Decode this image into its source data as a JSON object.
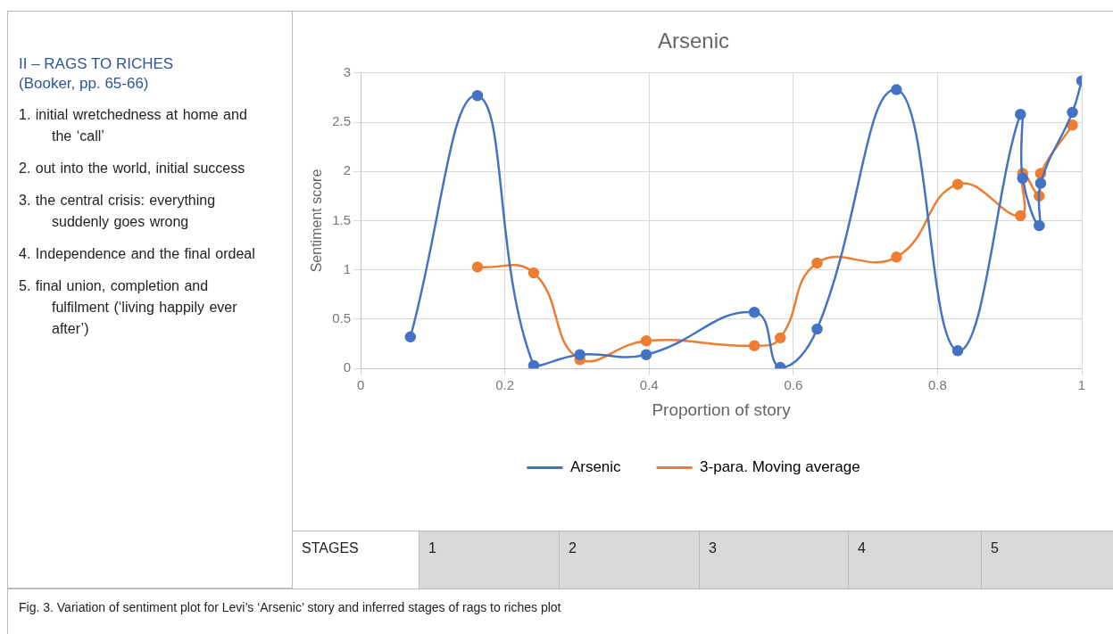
{
  "chart_data": [
    {
      "type": "line",
      "title": "Arsenic",
      "xlabel": "Proportion of story",
      "ylabel": "Sentiment score",
      "xlim": [
        0,
        1
      ],
      "xticks": [
        0,
        0.2,
        0.4,
        0.6,
        0.8,
        1
      ],
      "ylim": [
        0,
        3
      ],
      "yticks": [
        0,
        0.5,
        1,
        1.5,
        2,
        2.5,
        3
      ],
      "grid": true,
      "legend": "bottom",
      "marker": "circle",
      "line_style": "solid",
      "series": [
        {
          "name": "Arsenic",
          "color": "#4472c4",
          "x": [
            0.069,
            0.162,
            0.24,
            0.304,
            0.396,
            0.546,
            0.582,
            0.633,
            0.743,
            0.828,
            0.915,
            0.918,
            0.941,
            0.943,
            0.987,
            1.0
          ],
          "values": [
            0.32,
            2.77,
            0.03,
            0.14,
            0.14,
            0.57,
            0.01,
            0.4,
            2.83,
            0.18,
            2.58,
            1.93,
            1.45,
            1.88,
            2.6,
            2.92
          ]
        },
        {
          "name": "3-para. Moving average",
          "color": "#ed7d31",
          "x": [
            0.162,
            0.24,
            0.304,
            0.396,
            0.546,
            0.582,
            0.633,
            0.743,
            0.828,
            0.915,
            0.918,
            0.941,
            0.943,
            0.987
          ],
          "values": [
            1.03,
            0.97,
            0.09,
            0.28,
            0.23,
            0.31,
            1.07,
            1.13,
            1.87,
            1.55,
            1.98,
            1.75,
            1.98,
            2.47
          ]
        }
      ],
      "annotations": [
        "Fig. 3. Variation of sentiment plot for Levi’s ‘Arsenic’ story and inferred stages of rags to riches plot"
      ]
    },
    {
      "type": "other",
      "title": "II – RAGS TO RICHES",
      "subtitle": "(Booker, pp. 65-66)",
      "annotations": [
        "1. initial wretchedness at home and the ‘call’",
        "2. out into the world, initial success",
        "3. the central crisis: everything suddenly goes wrong",
        "4. Independence and the final ordeal",
        "5. final union, completion and fulfilment (‘living happily ever after’)"
      ]
    },
    {
      "type": "other",
      "title": "STAGES",
      "categories": [
        "1",
        "2",
        "3",
        "4",
        "5"
      ]
    }
  ]
}
